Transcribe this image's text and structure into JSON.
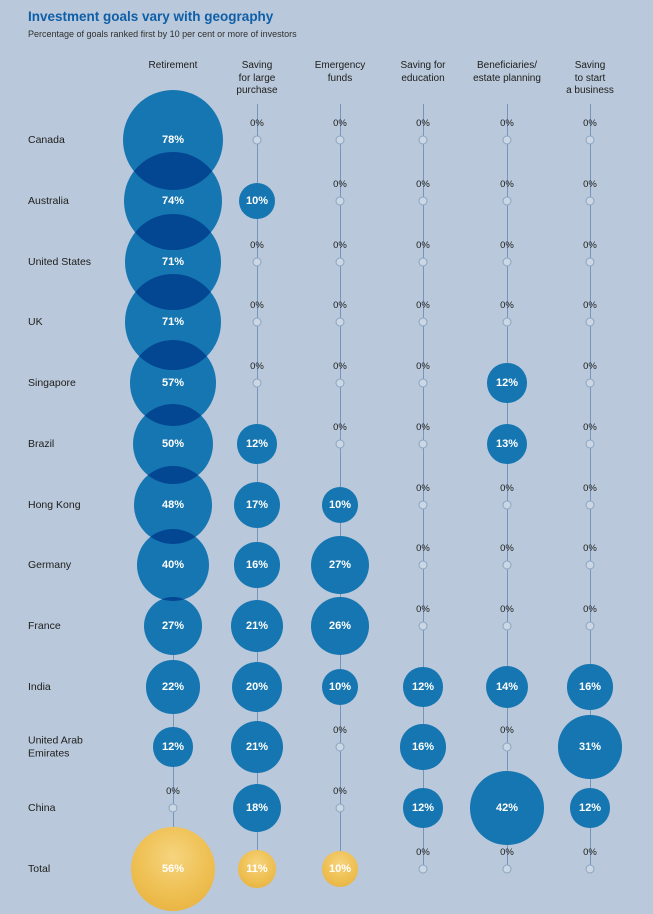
{
  "title": "Investment goals vary with geography",
  "subtitle": "Percentage of goals ranked first by 10 per cent or more of investors",
  "unit": "%",
  "colors": {
    "background": "#b9c8da",
    "bubble_blue": "#1478b4",
    "bubble_overlap": "#0b4c8c",
    "total_bubble_gold": "#edbd4f",
    "title_text": "#0e5ea8",
    "grid_line": "#7795ba",
    "label_text": "#1d1d1b",
    "value_text": "#ffffff"
  },
  "chart_data": {
    "type": "bubble",
    "title": "Investment goals vary with geography",
    "subtitle": "Percentage of goals ranked first by 10 per cent or more of investors",
    "unit": "%",
    "value_scale": "bubble area proportional to percentage; 0% shown as small dot marker",
    "grid": "vertical column lines only",
    "legend_position": "none",
    "columns": [
      "Retirement",
      "Saving\nfor large\npurchase",
      "Emergency\nfunds",
      "Saving for\neducation",
      "Beneficiaries/\nestate planning",
      "Saving\nto start\na business"
    ],
    "rows": [
      {
        "name": "Canada",
        "values": [
          78,
          0,
          0,
          0,
          0,
          0
        ]
      },
      {
        "name": "Australia",
        "values": [
          74,
          10,
          0,
          0,
          0,
          0
        ]
      },
      {
        "name": "United States",
        "values": [
          71,
          0,
          0,
          0,
          0,
          0
        ]
      },
      {
        "name": "UK",
        "values": [
          71,
          0,
          0,
          0,
          0,
          0
        ]
      },
      {
        "name": "Singapore",
        "values": [
          57,
          0,
          0,
          0,
          12,
          0
        ]
      },
      {
        "name": "Brazil",
        "values": [
          50,
          12,
          0,
          0,
          13,
          0
        ]
      },
      {
        "name": "Hong Kong",
        "values": [
          48,
          17,
          10,
          0,
          0,
          0
        ]
      },
      {
        "name": "Germany",
        "values": [
          40,
          16,
          27,
          0,
          0,
          0
        ]
      },
      {
        "name": "France",
        "values": [
          27,
          21,
          26,
          0,
          0,
          0
        ]
      },
      {
        "name": "India",
        "values": [
          22,
          20,
          10,
          12,
          14,
          16
        ]
      },
      {
        "name": "United Arab Emirates",
        "values": [
          12,
          21,
          0,
          16,
          0,
          31
        ]
      },
      {
        "name": "China",
        "values": [
          0,
          18,
          0,
          12,
          42,
          12
        ]
      },
      {
        "name": "Total",
        "values": [
          56,
          11,
          10,
          0,
          0,
          0
        ],
        "highlight": "gold"
      }
    ]
  }
}
